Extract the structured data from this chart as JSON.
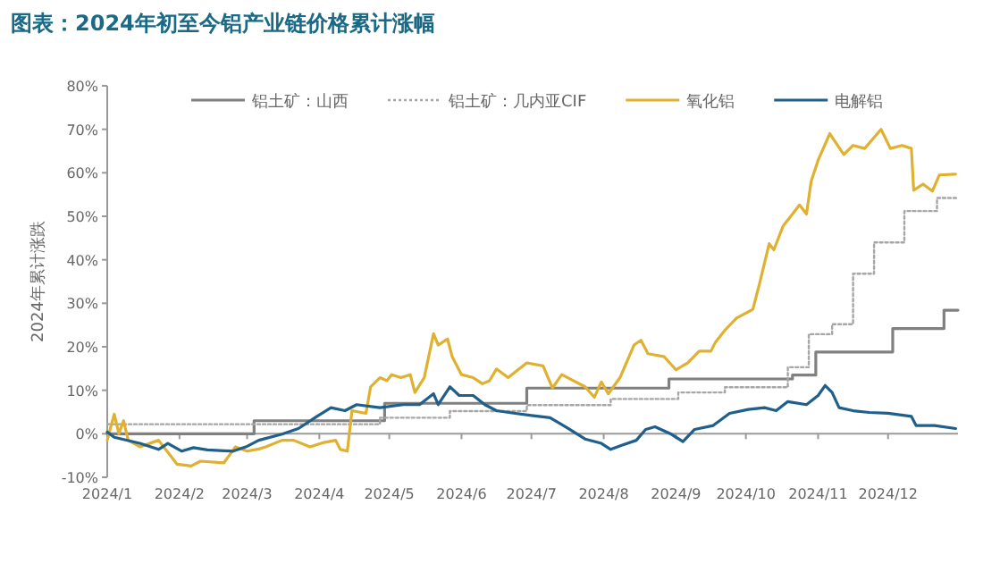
{
  "chart_data": {
    "type": "line",
    "title": "图表：2024年初至今铝产业链价格累计涨幅",
    "ylabel": "2024年累计涨跌",
    "xlim": [
      "2024-01-01",
      "2024-12-31"
    ],
    "xticks": [
      {
        "value": "2024-01-01",
        "label": "2024/1"
      },
      {
        "value": "2024-02-01",
        "label": "2024/2"
      },
      {
        "value": "2024-03-01",
        "label": "2024/3"
      },
      {
        "value": "2024-04-01",
        "label": "2024/4"
      },
      {
        "value": "2024-05-01",
        "label": "2024/5"
      },
      {
        "value": "2024-06-01",
        "label": "2024/6"
      },
      {
        "value": "2024-07-01",
        "label": "2024/7"
      },
      {
        "value": "2024-08-01",
        "label": "2024/8"
      },
      {
        "value": "2024-09-01",
        "label": "2024/9"
      },
      {
        "value": "2024-10-01",
        "label": "2024/10"
      },
      {
        "value": "2024-11-01",
        "label": "2024/11"
      },
      {
        "value": "2024-12-01",
        "label": "2024/12"
      }
    ],
    "ylim": [
      -10,
      80
    ],
    "yticks": [
      {
        "value": -10,
        "label": "-10%"
      },
      {
        "value": 0,
        "label": "0%"
      },
      {
        "value": 10,
        "label": "10%"
      },
      {
        "value": 20,
        "label": "20%"
      },
      {
        "value": 30,
        "label": "30%"
      },
      {
        "value": 40,
        "label": "40%"
      },
      {
        "value": 50,
        "label": "50%"
      },
      {
        "value": 60,
        "label": "60%"
      },
      {
        "value": 70,
        "label": "70%"
      },
      {
        "value": 80,
        "label": "80%"
      }
    ],
    "legend": "top",
    "marker": "none",
    "series": [
      {
        "name": "铝土矿：山西",
        "type": "step",
        "line_style": "solid",
        "color": "#808080",
        "x": [
          "2024-01-01",
          "2024-03-04",
          "2024-04-29",
          "2024-06-29",
          "2024-08-29",
          "2024-10-21",
          "2024-10-31",
          "2024-12-03",
          "2024-12-25",
          "2024-12-31"
        ],
        "values": [
          0,
          3,
          7,
          10.5,
          12.6,
          13.5,
          18.8,
          24.2,
          28.4,
          28.4
        ]
      },
      {
        "name": "铝土矿：几内亚CIF",
        "type": "step",
        "line_style": "dotted",
        "color": "#a6a6a6",
        "x": [
          "2024-01-01",
          "2024-04-27",
          "2024-05-27",
          "2024-06-29",
          "2024-08-04",
          "2024-09-02",
          "2024-09-22",
          "2024-10-19",
          "2024-10-28",
          "2024-11-07",
          "2024-11-16",
          "2024-11-25",
          "2024-12-08",
          "2024-12-22",
          "2024-12-31"
        ],
        "values": [
          2.2,
          3.7,
          5.2,
          6.6,
          8,
          9.5,
          10.7,
          15.3,
          22.9,
          25.2,
          36.8,
          44,
          51.2,
          54.2,
          54.2
        ]
      },
      {
        "name": "氧化铝",
        "line_style": "solid",
        "color": "#e0b030",
        "x": [
          "2024-01-01",
          "2024-01-04",
          "2024-01-06",
          "2024-01-08",
          "2024-01-10",
          "2024-01-15",
          "2024-01-23",
          "2024-01-31",
          "2024-02-06",
          "2024-02-10",
          "2024-02-20",
          "2024-02-25",
          "2024-03-01",
          "2024-03-06",
          "2024-03-09",
          "2024-03-16",
          "2024-03-21",
          "2024-03-28",
          "2024-04-03",
          "2024-04-08",
          "2024-04-10",
          "2024-04-13",
          "2024-04-15",
          "2024-04-21",
          "2024-04-23",
          "2024-04-27",
          "2024-04-30",
          "2024-05-02",
          "2024-05-06",
          "2024-05-10",
          "2024-05-12",
          "2024-05-16",
          "2024-05-20",
          "2024-05-22",
          "2024-05-26",
          "2024-05-28",
          "2024-06-01",
          "2024-06-06",
          "2024-06-10",
          "2024-06-13",
          "2024-06-16",
          "2024-06-21",
          "2024-06-29",
          "2024-07-06",
          "2024-07-10",
          "2024-07-14",
          "2024-07-24",
          "2024-07-28",
          "2024-07-31",
          "2024-08-03",
          "2024-08-08",
          "2024-08-14",
          "2024-08-17",
          "2024-08-20",
          "2024-08-27",
          "2024-09-01",
          "2024-09-06",
          "2024-09-11",
          "2024-09-16",
          "2024-09-18",
          "2024-09-22",
          "2024-09-27",
          "2024-10-04",
          "2024-10-07",
          "2024-10-11",
          "2024-10-13",
          "2024-10-17",
          "2024-10-21",
          "2024-10-24",
          "2024-10-27",
          "2024-10-29",
          "2024-11-01",
          "2024-11-06",
          "2024-11-12",
          "2024-11-16",
          "2024-11-21",
          "2024-11-28",
          "2024-12-02",
          "2024-12-07",
          "2024-12-11",
          "2024-12-12",
          "2024-12-16",
          "2024-12-20",
          "2024-12-23",
          "2024-12-30"
        ],
        "values": [
          -1.5,
          4.5,
          0,
          3,
          -1.5,
          -3,
          -1.5,
          -7,
          -7.4,
          -6.3,
          -6.7,
          -3,
          -4,
          -3.5,
          -3,
          -1.5,
          -1.5,
          -3,
          -2,
          -1.5,
          -3.6,
          -4,
          5.3,
          4.7,
          10.8,
          12.9,
          12.2,
          13.6,
          12.9,
          13.6,
          9.5,
          12.9,
          23,
          20.4,
          21.8,
          17.7,
          13.6,
          12.9,
          11.5,
          12.2,
          14.9,
          12.9,
          16.3,
          15.6,
          10.5,
          13.6,
          10.8,
          8.4,
          11.9,
          9.2,
          12.9,
          20.4,
          21.5,
          18.4,
          17.7,
          14.7,
          16.3,
          19,
          19,
          21.1,
          23.8,
          26.6,
          28.6,
          34.8,
          43.7,
          42.3,
          47.8,
          50.5,
          52.6,
          50.5,
          58,
          62.9,
          69,
          64.2,
          66.3,
          65.6,
          70,
          65.6,
          66.3,
          65.6,
          56,
          57.4,
          55.8,
          59.5,
          59.7
        ]
      },
      {
        "name": "电解铝",
        "line_style": "solid",
        "color": "#1f5f8b",
        "x": [
          "2024-01-01",
          "2024-01-04",
          "2024-01-15",
          "2024-01-23",
          "2024-01-27",
          "2024-02-02",
          "2024-02-07",
          "2024-02-13",
          "2024-02-24",
          "2024-03-01",
          "2024-03-06",
          "2024-03-16",
          "2024-03-23",
          "2024-03-31",
          "2024-04-06",
          "2024-04-12",
          "2024-04-17",
          "2024-04-27",
          "2024-05-07",
          "2024-05-14",
          "2024-05-20",
          "2024-05-22",
          "2024-05-27",
          "2024-05-31",
          "2024-06-06",
          "2024-06-11",
          "2024-06-16",
          "2024-06-24",
          "2024-07-01",
          "2024-07-09",
          "2024-07-16",
          "2024-07-24",
          "2024-07-31",
          "2024-08-04",
          "2024-08-09",
          "2024-08-15",
          "2024-08-19",
          "2024-08-23",
          "2024-08-30",
          "2024-09-04",
          "2024-09-09",
          "2024-09-17",
          "2024-09-24",
          "2024-10-02",
          "2024-10-09",
          "2024-10-14",
          "2024-10-19",
          "2024-10-27",
          "2024-11-01",
          "2024-11-04",
          "2024-11-07",
          "2024-11-10",
          "2024-11-16",
          "2024-11-23",
          "2024-12-01",
          "2024-12-11",
          "2024-12-13",
          "2024-12-21",
          "2024-12-30"
        ],
        "values": [
          0.4,
          -0.8,
          -2.2,
          -3.6,
          -2.2,
          -4,
          -3.2,
          -3.7,
          -4,
          -2.9,
          -1.5,
          -0.1,
          1.2,
          4,
          6,
          5.3,
          6.7,
          6,
          6.7,
          6.7,
          9.2,
          6.7,
          10.8,
          8.8,
          8.8,
          6.7,
          5.3,
          4.7,
          4.2,
          3.7,
          1.5,
          -1.2,
          -2.2,
          -3.6,
          -2.6,
          -1.5,
          1,
          1.6,
          -0.1,
          -1.8,
          1,
          1.9,
          4.7,
          5.6,
          6,
          5.3,
          7.4,
          6.7,
          8.8,
          11.1,
          9.5,
          6,
          5.3,
          4.9,
          4.7,
          4,
          1.9,
          1.9,
          1.2
        ]
      }
    ]
  }
}
